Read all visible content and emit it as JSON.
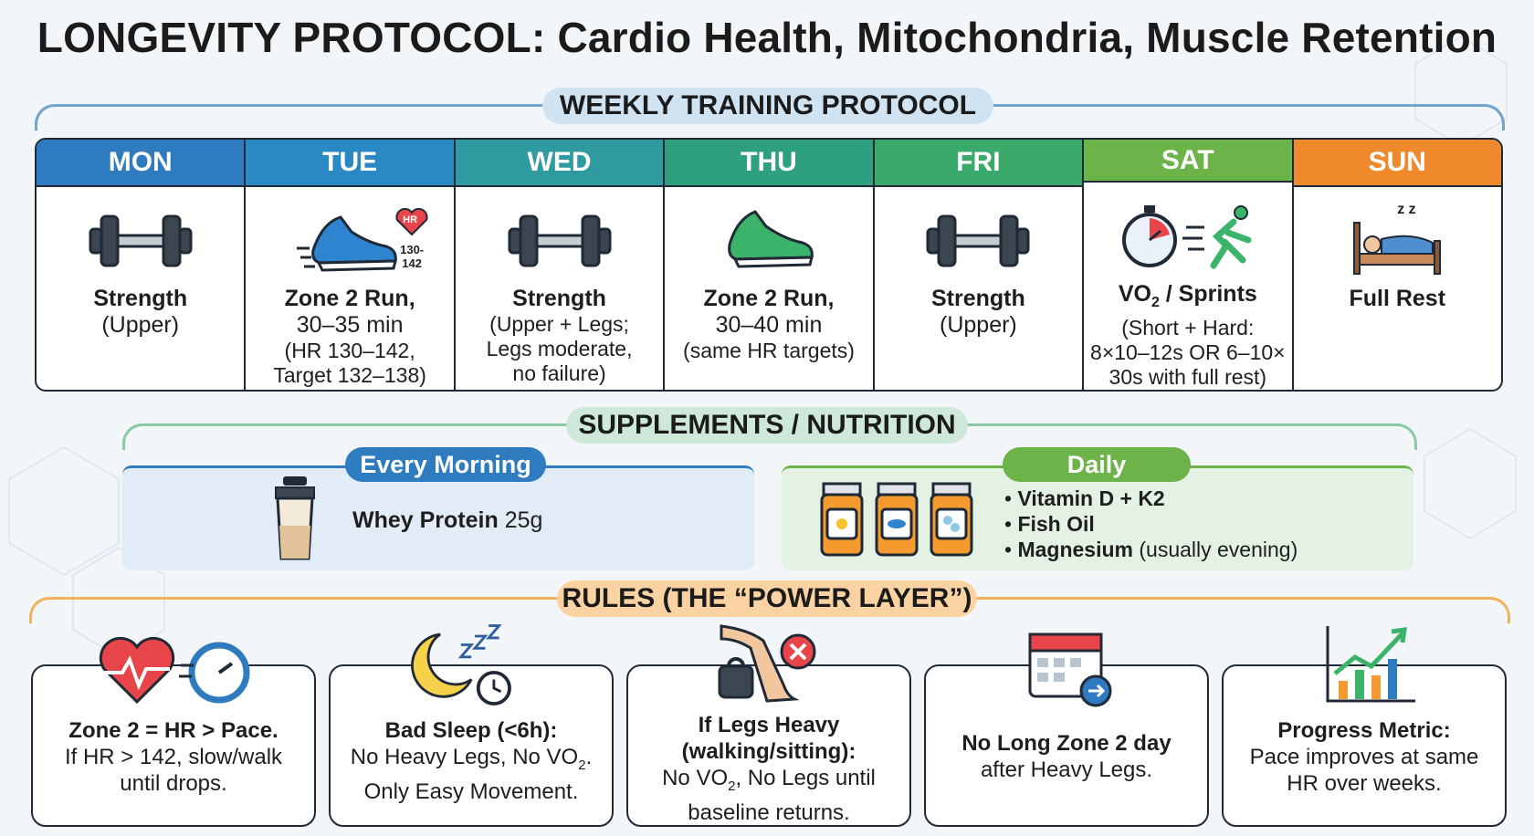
{
  "title": "LONGEVITY PROTOCOL: Cardio Health, Mitochondria, Muscle Retention",
  "weekly": {
    "banner": "WEEKLY TRAINING PROTOCOL",
    "days": [
      {
        "name": "MON",
        "color": "#2f7bbf",
        "icon": "dumbbell-icon",
        "title": "Strength",
        "lines": [
          "(Upper)"
        ]
      },
      {
        "name": "TUE",
        "color": "#2a89c4",
        "icon": "running-shoe-icon",
        "hr_badge": "HR",
        "hr_range": "130-142",
        "title": "Zone 2 Run,",
        "lines": [
          "30–35 min"
        ],
        "small": [
          "(HR 130–142,",
          "Target 132–138)"
        ]
      },
      {
        "name": "WED",
        "color": "#2f9aa0",
        "icon": "dumbbell-icon",
        "title": "Strength",
        "small": [
          "(Upper + Legs;",
          "Legs moderate,",
          "no failure)"
        ]
      },
      {
        "name": "THU",
        "color": "#2fa07f",
        "icon": "running-shoe-icon",
        "title": "Zone 2 Run,",
        "lines": [
          "30–40 min"
        ],
        "small": [
          "(same HR targets)"
        ]
      },
      {
        "name": "FRI",
        "color": "#3aaa6a",
        "icon": "dumbbell-icon",
        "title": "Strength",
        "lines": [
          "(Upper)"
        ]
      },
      {
        "name": "SAT",
        "color": "#6cb44a",
        "icon": "stopwatch-sprinter-icon",
        "title": "VO",
        "title_sub": "2",
        "title_rest": " / Sprints",
        "small": [
          "(Short + Hard:",
          "8×10–12s OR 6–10×",
          "30s with full rest)"
        ]
      },
      {
        "name": "SUN",
        "color": "#ef8a2c",
        "icon": "bed-sleep-icon",
        "zzz": "z z",
        "title": "Full Rest"
      }
    ]
  },
  "supplements": {
    "banner": "SUPPLEMENTS / NUTRITION",
    "morning": {
      "label": "Every Morning",
      "item_bold": "Whey Protein",
      "item_rest": " 25g"
    },
    "daily": {
      "label": "Daily",
      "items": [
        {
          "bold": "Vitamin D + K2",
          "rest": ""
        },
        {
          "bold": "Fish Oil",
          "rest": ""
        },
        {
          "bold": "Magnesium",
          "rest": " (usually evening)"
        }
      ]
    }
  },
  "rules": {
    "banner": "RULES (THE “POWER LAYER”)",
    "items": [
      {
        "icon": "heart-rate-icon",
        "t1": "Zone 2 = HR > Pace.",
        "l1": "If HR > 142, slow/walk",
        "l2": "until drops."
      },
      {
        "icon": "moon-sleep-icon",
        "t1": "Bad Sleep (<6h):",
        "l1a": "No Heavy Legs, No VO",
        "l1sub": "2",
        "l1b": ".",
        "l2": "Only Easy Movement."
      },
      {
        "icon": "heavy-legs-icon",
        "t1": "If Legs Heavy",
        "t2": "(walking/sitting):",
        "l1a": "No VO",
        "l1sub": "2",
        "l1b": ", No Legs until",
        "l2": "baseline returns."
      },
      {
        "icon": "calendar-arrow-icon",
        "t1": "No Long Zone 2 day",
        "l1": "after Heavy Legs."
      },
      {
        "icon": "progress-chart-icon",
        "t1": "Progress Metric:",
        "l1": "Pace improves at same",
        "l2": "HR over weeks."
      }
    ]
  }
}
